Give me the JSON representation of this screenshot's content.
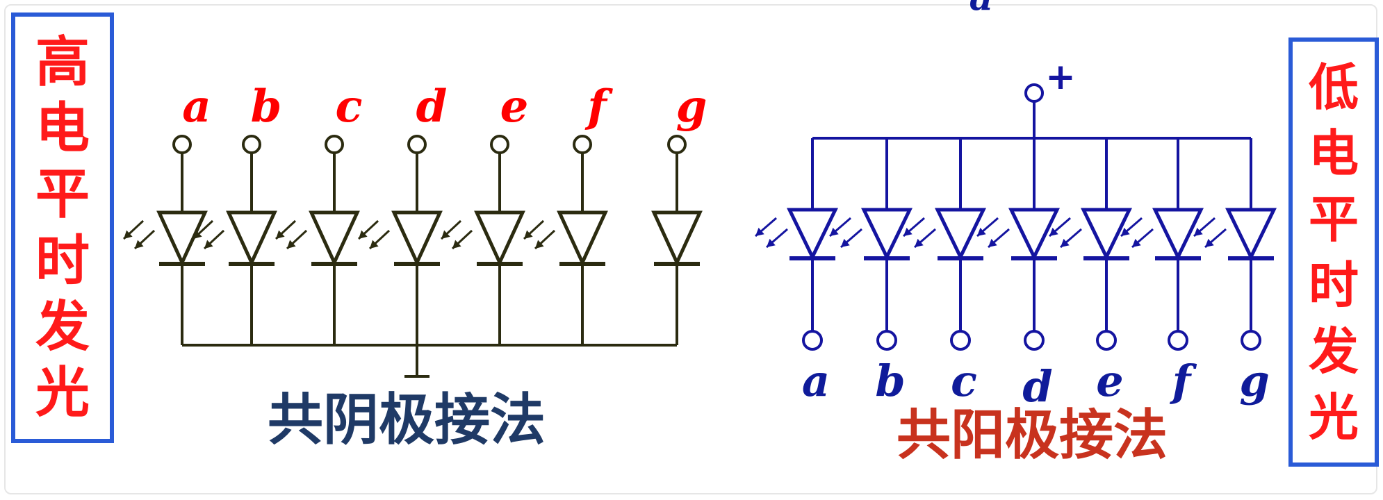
{
  "left_panel": {
    "side_label_chars": [
      "高",
      "电",
      "平",
      "时",
      "发",
      "光"
    ],
    "title": "共阴极接法",
    "pins": [
      "a",
      "b",
      "c",
      "d",
      "e",
      "f",
      "g"
    ],
    "wire_color": "#2b2b10",
    "label_color": "#ff0000",
    "title_color": "#1f3a66"
  },
  "right_panel": {
    "side_label_chars": [
      "低",
      "电",
      "平",
      "时",
      "发",
      "光"
    ],
    "title": "共阳极接法",
    "pins": [
      "a",
      "b",
      "c",
      "d",
      "e",
      "f",
      "g"
    ],
    "supply_symbol": "+",
    "top_cut_label": "a",
    "wire_color": "#1414a0",
    "label_color": "#0f1b9a",
    "title_color": "#c8321e"
  },
  "accent": {
    "box_border": "#2a5bd7",
    "side_text": "#ff1a1a"
  }
}
